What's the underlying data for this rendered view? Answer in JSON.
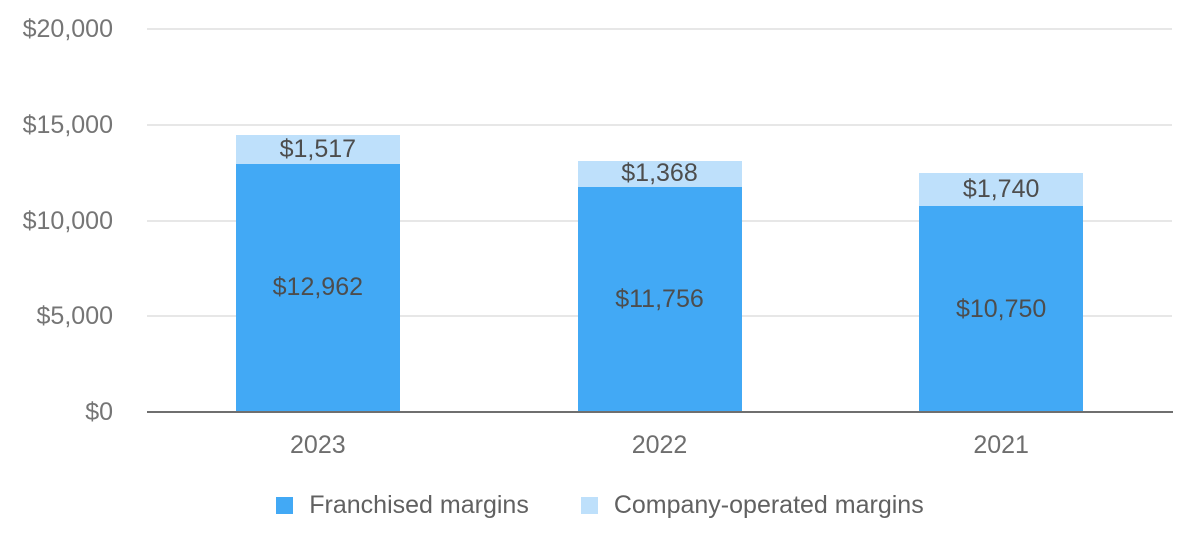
{
  "chart_data": {
    "type": "bar",
    "stacked": true,
    "title": "",
    "categories": [
      "2023",
      "2022",
      "2021"
    ],
    "series": [
      {
        "name": "Franchised margins",
        "color": "#42A9F5",
        "values": [
          12962,
          11756,
          10750
        ],
        "value_labels": [
          "$12,962",
          "$11,756",
          "$10,750"
        ]
      },
      {
        "name": "Company-operated margins",
        "color": "#BEE0FB",
        "values": [
          1517,
          1368,
          1740
        ],
        "value_labels": [
          "$1,517",
          "$1,368",
          "$1,740"
        ]
      }
    ],
    "ylim": [
      0,
      20000
    ],
    "yticks": [
      {
        "value": 0,
        "label": "$0"
      },
      {
        "value": 5000,
        "label": "$5,000"
      },
      {
        "value": 10000,
        "label": "$10,000"
      },
      {
        "value": 15000,
        "label": "$15,000"
      },
      {
        "value": 20000,
        "label": "$20,000"
      }
    ],
    "grid": true,
    "legend_position": "bottom"
  },
  "colors": {
    "background": "#ffffff",
    "gridline": "#e7e7e7",
    "axis_line": "#6f6f6f",
    "y_tick_label": "#757575",
    "x_tick_label": "#6e6e6e",
    "bar_value_label": "#4d4d4d",
    "legend_label": "#616161",
    "series_franchised": "#42A9F5",
    "series_company_operated": "#BEE0FB"
  }
}
